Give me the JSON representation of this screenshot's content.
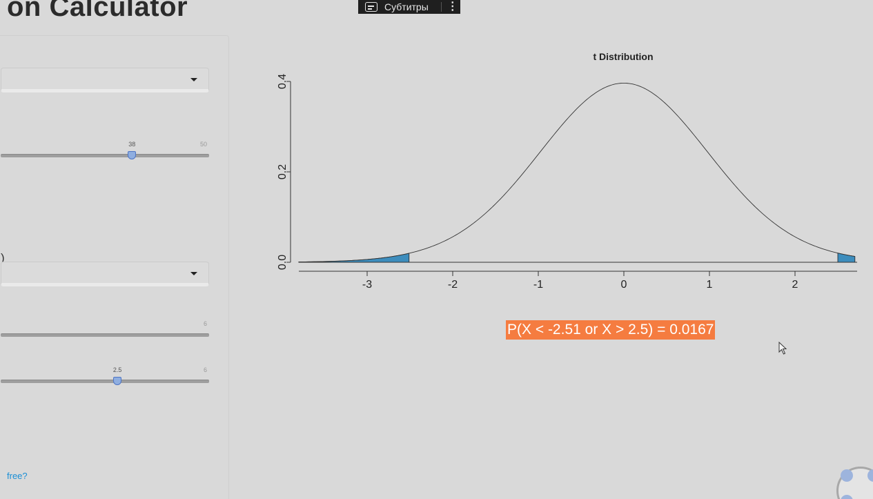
{
  "page": {
    "title": "on Calculator"
  },
  "subtitles_bar": {
    "label": "Субтитры",
    "cc_icon": "closed-captions-icon",
    "more_icon": "more-vertical-icon"
  },
  "sidebar": {
    "slider1": {
      "value": "38",
      "max": "50",
      "value_fraction": 0.63
    },
    "paren_text": ")",
    "slider2": {
      "max": "6"
    },
    "slider3": {
      "value": "2.5",
      "max": "6",
      "value_fraction": 0.56
    },
    "free_link": "free?"
  },
  "chart_data": {
    "type": "line",
    "title": "t Distribution",
    "xlabel": "",
    "ylabel": "",
    "xlim": [
      -3.8,
      2.7
    ],
    "ylim": [
      0,
      0.4
    ],
    "x_ticks": [
      "-3",
      "-2",
      "-1",
      "0",
      "1",
      "2"
    ],
    "y_ticks": [
      "0.0",
      "0.2",
      "0.4"
    ],
    "degrees_of_freedom": 38,
    "shaded_regions": [
      {
        "from": -3.8,
        "to": -2.51
      },
      {
        "from": 2.5,
        "to": 2.7
      }
    ],
    "line_color": "#333333",
    "shade_color": "#3d8dbd"
  },
  "result": {
    "text": "P(X < -2.51 or X > 2.5) = 0.0167",
    "color": "#f57c40"
  }
}
